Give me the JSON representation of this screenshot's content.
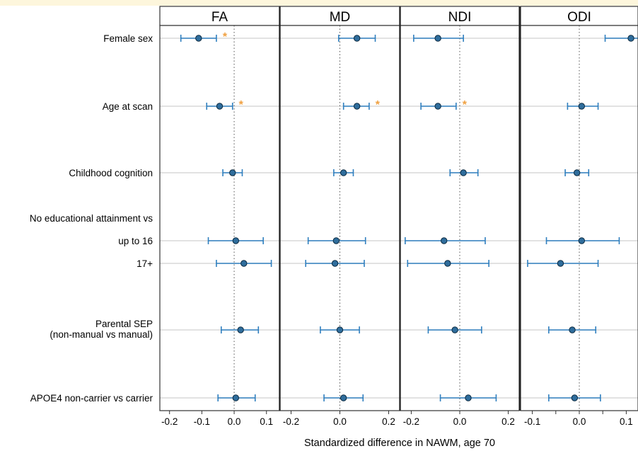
{
  "chart_data": {
    "type": "forest",
    "xlabel": "Standardized difference in NAWM, age 70",
    "colors": {
      "point": "#2f6d9c",
      "errorbar": "#2f7fbf",
      "star": "#f0a040",
      "gridline": "#d0d0d0",
      "top_band": "#fdf6dc"
    },
    "rows": [
      {
        "key": "female",
        "label_lines": [
          "Female sex"
        ]
      },
      {
        "key": "age",
        "label_lines": [
          "Age at scan"
        ]
      },
      {
        "key": "cog",
        "label_lines": [
          "Childhood cognition"
        ]
      },
      {
        "key": "edu_header",
        "label_lines": [
          "No educational attainment vs"
        ],
        "header": true
      },
      {
        "key": "edu16",
        "label_lines": [
          "up to 16"
        ]
      },
      {
        "key": "edu17",
        "label_lines": [
          "17+"
        ]
      },
      {
        "key": "sep",
        "label_lines": [
          "Parental SEP",
          "(non-manual vs manual)"
        ]
      },
      {
        "key": "apoe",
        "label_lines": [
          "APOE4 non-carrier vs carrier"
        ]
      }
    ],
    "panels": [
      {
        "name": "FA",
        "xlim": [
          -0.23,
          0.14
        ],
        "ticks": [
          "-0.2",
          "-0.1",
          "0.0",
          "0.1"
        ],
        "tick_values": [
          -0.2,
          -0.1,
          0.0,
          0.1
        ],
        "estimates": [
          {
            "row": "female",
            "est": -0.11,
            "lo": -0.165,
            "hi": -0.055,
            "sig": true
          },
          {
            "row": "age",
            "est": -0.045,
            "lo": -0.085,
            "hi": -0.005,
            "sig": true
          },
          {
            "row": "cog",
            "est": -0.005,
            "lo": -0.035,
            "hi": 0.025,
            "sig": false
          },
          {
            "row": "edu16",
            "est": 0.005,
            "lo": -0.08,
            "hi": 0.09,
            "sig": false
          },
          {
            "row": "edu17",
            "est": 0.03,
            "lo": -0.055,
            "hi": 0.115,
            "sig": false
          },
          {
            "row": "sep",
            "est": 0.02,
            "lo": -0.04,
            "hi": 0.075,
            "sig": false
          },
          {
            "row": "apoe",
            "est": 0.005,
            "lo": -0.05,
            "hi": 0.065,
            "sig": false
          }
        ]
      },
      {
        "name": "MD",
        "xlim": [
          -0.245,
          0.245
        ],
        "ticks": [
          "-0.2",
          "0.0",
          "0.2"
        ],
        "tick_values": [
          -0.2,
          0.0,
          0.2
        ],
        "estimates": [
          {
            "row": "female",
            "est": 0.07,
            "lo": -0.005,
            "hi": 0.145,
            "sig": false
          },
          {
            "row": "age",
            "est": 0.07,
            "lo": 0.015,
            "hi": 0.12,
            "sig": true
          },
          {
            "row": "cog",
            "est": 0.015,
            "lo": -0.025,
            "hi": 0.055,
            "sig": false
          },
          {
            "row": "edu16",
            "est": -0.015,
            "lo": -0.13,
            "hi": 0.105,
            "sig": false
          },
          {
            "row": "edu17",
            "est": -0.02,
            "lo": -0.14,
            "hi": 0.1,
            "sig": false
          },
          {
            "row": "sep",
            "est": 0.0,
            "lo": -0.08,
            "hi": 0.08,
            "sig": false
          },
          {
            "row": "apoe",
            "est": 0.015,
            "lo": -0.065,
            "hi": 0.095,
            "sig": false
          }
        ]
      },
      {
        "name": "NDI",
        "xlim": [
          -0.245,
          0.245
        ],
        "ticks": [
          "-0.2",
          "0.0",
          "0.2"
        ],
        "tick_values": [
          -0.2,
          0.0,
          0.2
        ],
        "estimates": [
          {
            "row": "female",
            "est": -0.09,
            "lo": -0.19,
            "hi": 0.015,
            "sig": false
          },
          {
            "row": "age",
            "est": -0.09,
            "lo": -0.16,
            "hi": -0.015,
            "sig": true
          },
          {
            "row": "cog",
            "est": 0.015,
            "lo": -0.04,
            "hi": 0.075,
            "sig": false
          },
          {
            "row": "edu16",
            "est": -0.065,
            "lo": -0.225,
            "hi": 0.105,
            "sig": false
          },
          {
            "row": "edu17",
            "est": -0.05,
            "lo": -0.215,
            "hi": 0.12,
            "sig": false
          },
          {
            "row": "sep",
            "est": -0.02,
            "lo": -0.13,
            "hi": 0.09,
            "sig": false
          },
          {
            "row": "apoe",
            "est": 0.035,
            "lo": -0.08,
            "hi": 0.15,
            "sig": false
          }
        ]
      },
      {
        "name": "ODI",
        "xlim": [
          -0.125,
          0.125
        ],
        "ticks": [
          "-0.1",
          "0.0",
          "0.1"
        ],
        "tick_values": [
          -0.1,
          0.0,
          0.1
        ],
        "extra_ticks": [
          "-0.0",
          "0.1"
        ],
        "extra_tick_values": [
          -0.05,
          0.05
        ],
        "estimates": [
          {
            "row": "female",
            "est": 0.11,
            "lo": 0.055,
            "hi": 0.165,
            "sig": true
          },
          {
            "row": "age",
            "est": 0.005,
            "lo": -0.025,
            "hi": 0.04,
            "sig": false
          },
          {
            "row": "cog",
            "est": -0.005,
            "lo": -0.03,
            "hi": 0.02,
            "sig": false
          },
          {
            "row": "edu16",
            "est": 0.005,
            "lo": -0.07,
            "hi": 0.085,
            "sig": false
          },
          {
            "row": "edu17",
            "est": -0.04,
            "lo": -0.11,
            "hi": 0.04,
            "sig": false
          },
          {
            "row": "sep",
            "est": -0.015,
            "lo": -0.065,
            "hi": 0.035,
            "sig": false
          },
          {
            "row": "apoe",
            "est": -0.01,
            "lo": -0.065,
            "hi": 0.045,
            "sig": false
          }
        ]
      }
    ]
  }
}
